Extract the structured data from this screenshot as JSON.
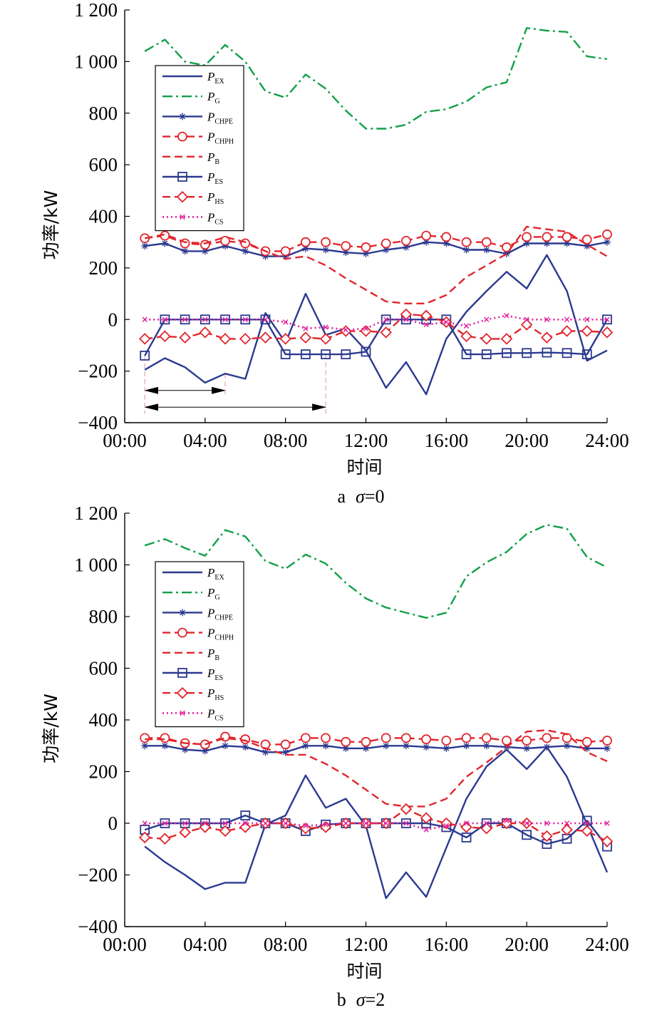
{
  "colors": {
    "blue": "#2b3990",
    "green": "#12a04a",
    "red": "#e1262d",
    "magenta": "#e0219a",
    "annotation": "#e8a3b0"
  },
  "chart_data": [
    {
      "type": "line",
      "caption_prefix": "a",
      "caption_symbol": "σ",
      "caption_value": "=0",
      "xlabel": "时间",
      "ylabel": "功率/kW",
      "ylim": [
        -400,
        1200
      ],
      "yticks": [
        -400,
        -200,
        0,
        200,
        400,
        600,
        800,
        1000,
        1200
      ],
      "ytick_labels": [
        "−400",
        "−200",
        "0",
        "200",
        "400",
        "600",
        "800",
        "1 000",
        "1 200"
      ],
      "xlim": [
        0,
        24
      ],
      "xticks": [
        0,
        4,
        8,
        12,
        16,
        20,
        24
      ],
      "xtick_labels": [
        "00:00",
        "04:00",
        "08:00",
        "12:00",
        "16:00",
        "20:00",
        "24:00"
      ],
      "x": [
        1,
        2,
        3,
        4,
        5,
        6,
        7,
        8,
        9,
        10,
        11,
        12,
        13,
        14,
        15,
        16,
        17,
        18,
        19,
        20,
        21,
        22,
        23,
        24
      ],
      "legend_position": "upper-left",
      "series": [
        {
          "name": "P",
          "sub": "EX",
          "style": "ex",
          "values": [
            -195,
            -150,
            -185,
            -245,
            -210,
            -230,
            25,
            -90,
            100,
            -60,
            -35,
            -120,
            -265,
            -165,
            -290,
            -75,
            30,
            110,
            185,
            120,
            250,
            110,
            -160,
            -120
          ]
        },
        {
          "name": "P",
          "sub": "G",
          "style": "g",
          "values": [
            1040,
            1085,
            1000,
            985,
            1065,
            1000,
            885,
            860,
            950,
            895,
            810,
            740,
            740,
            755,
            805,
            815,
            845,
            900,
            920,
            1130,
            1120,
            1115,
            1020,
            1010
          ]
        },
        {
          "name": "P",
          "sub": "CHPE",
          "style": "chpe",
          "values": [
            285,
            295,
            265,
            265,
            285,
            265,
            245,
            245,
            275,
            270,
            260,
            255,
            270,
            280,
            300,
            295,
            270,
            270,
            255,
            295,
            295,
            295,
            285,
            300
          ]
        },
        {
          "name": "P",
          "sub": "CHPH",
          "style": "chph",
          "values": [
            315,
            325,
            295,
            290,
            305,
            295,
            265,
            265,
            300,
            300,
            285,
            280,
            295,
            305,
            325,
            320,
            300,
            300,
            280,
            320,
            320,
            320,
            310,
            330
          ]
        },
        {
          "name": "P",
          "sub": "B",
          "style": "b",
          "values": [
            315,
            330,
            300,
            295,
            320,
            300,
            265,
            235,
            245,
            210,
            160,
            115,
            70,
            62,
            62,
            95,
            165,
            210,
            255,
            360,
            350,
            340,
            290,
            245
          ]
        },
        {
          "name": "P",
          "sub": "ES",
          "style": "es",
          "values": [
            -140,
            0,
            0,
            0,
            0,
            0,
            0,
            -135,
            -135,
            -135,
            -135,
            -125,
            0,
            0,
            0,
            0,
            -135,
            -135,
            -130,
            -130,
            -128,
            -130,
            -135,
            0
          ]
        },
        {
          "name": "P",
          "sub": "HS",
          "style": "hs",
          "values": [
            -75,
            -65,
            -70,
            -50,
            -75,
            -75,
            -70,
            -75,
            -70,
            -75,
            -45,
            -45,
            -50,
            20,
            15,
            -10,
            -65,
            -75,
            -75,
            -20,
            -70,
            -45,
            -45,
            -50
          ]
        },
        {
          "name": "P",
          "sub": "CS",
          "style": "cs",
          "values": [
            0,
            0,
            0,
            0,
            0,
            0,
            0,
            -10,
            -35,
            -30,
            -40,
            -35,
            0,
            0,
            -20,
            -10,
            -25,
            0,
            15,
            0,
            0,
            0,
            0,
            0
          ]
        }
      ],
      "annotations": [
        {
          "kind": "double-arrow",
          "x_from": 1,
          "x_to": 5,
          "y": -275
        },
        {
          "kind": "double-arrow",
          "x_from": 1,
          "x_to": 10,
          "y": -340
        },
        {
          "kind": "vline",
          "x": 1,
          "y_from": -140,
          "y_to": -365
        },
        {
          "kind": "vline",
          "x": 5,
          "y_from": -210,
          "y_to": -290
        },
        {
          "kind": "vline",
          "x": 10,
          "y_from": -135,
          "y_to": -365
        }
      ]
    },
    {
      "type": "line",
      "caption_prefix": "b",
      "caption_symbol": "σ",
      "caption_value": "=2",
      "xlabel": "时间",
      "ylabel": "功率/kW",
      "ylim": [
        -400,
        1200
      ],
      "yticks": [
        -400,
        -200,
        0,
        200,
        400,
        600,
        800,
        1000,
        1200
      ],
      "ytick_labels": [
        "−400",
        "−200",
        "0",
        "200",
        "400",
        "600",
        "800",
        "1 000",
        "1 200"
      ],
      "xlim": [
        0,
        24
      ],
      "xticks": [
        0,
        4,
        8,
        12,
        16,
        20,
        24
      ],
      "xtick_labels": [
        "00:00",
        "04:00",
        "08:00",
        "12:00",
        "16:00",
        "20:00",
        "24:00"
      ],
      "x": [
        1,
        2,
        3,
        4,
        5,
        6,
        7,
        8,
        9,
        10,
        11,
        12,
        13,
        14,
        15,
        16,
        17,
        18,
        19,
        20,
        21,
        22,
        23,
        24
      ],
      "legend_position": "upper-left",
      "series": [
        {
          "name": "P",
          "sub": "EX",
          "style": "ex",
          "values": [
            -90,
            -150,
            -200,
            -255,
            -230,
            -230,
            -5,
            30,
            185,
            60,
            95,
            -10,
            -290,
            -190,
            -285,
            -95,
            95,
            220,
            285,
            210,
            295,
            180,
            -5,
            -190
          ]
        },
        {
          "name": "P",
          "sub": "G",
          "style": "g",
          "values": [
            1075,
            1100,
            1065,
            1035,
            1135,
            1110,
            1015,
            985,
            1040,
            1005,
            930,
            870,
            835,
            815,
            795,
            815,
            955,
            1010,
            1050,
            1120,
            1155,
            1140,
            1030,
            990
          ]
        },
        {
          "name": "P",
          "sub": "CHPE",
          "style": "chpe",
          "values": [
            300,
            300,
            285,
            280,
            300,
            295,
            275,
            275,
            300,
            300,
            290,
            290,
            300,
            300,
            295,
            290,
            300,
            300,
            295,
            290,
            295,
            300,
            290,
            290
          ]
        },
        {
          "name": "P",
          "sub": "CHPH",
          "style": "chph",
          "values": [
            330,
            330,
            310,
            305,
            335,
            325,
            305,
            305,
            330,
            330,
            315,
            315,
            330,
            330,
            325,
            320,
            330,
            330,
            320,
            320,
            330,
            330,
            315,
            320
          ]
        },
        {
          "name": "P",
          "sub": "B",
          "style": "b",
          "values": [
            325,
            325,
            310,
            305,
            330,
            320,
            290,
            265,
            265,
            230,
            185,
            130,
            75,
            65,
            65,
            95,
            180,
            235,
            295,
            355,
            360,
            345,
            275,
            240
          ]
        },
        {
          "name": "P",
          "sub": "ES",
          "style": "es",
          "values": [
            -25,
            0,
            0,
            0,
            0,
            30,
            0,
            0,
            -30,
            -5,
            0,
            0,
            0,
            0,
            0,
            -15,
            -55,
            0,
            0,
            -45,
            -80,
            -60,
            10,
            -90
          ]
        },
        {
          "name": "P",
          "sub": "HS",
          "style": "hs",
          "values": [
            -55,
            -60,
            -35,
            -15,
            -30,
            -15,
            0,
            0,
            -20,
            -15,
            0,
            0,
            0,
            55,
            20,
            0,
            -15,
            -20,
            0,
            0,
            -50,
            -25,
            -30,
            -70
          ]
        },
        {
          "name": "P",
          "sub": "CS",
          "style": "cs",
          "values": [
            0,
            0,
            0,
            0,
            0,
            0,
            0,
            0,
            -10,
            -5,
            0,
            0,
            0,
            0,
            -25,
            -10,
            0,
            0,
            10,
            0,
            0,
            0,
            0,
            0
          ]
        }
      ],
      "annotations": []
    }
  ]
}
